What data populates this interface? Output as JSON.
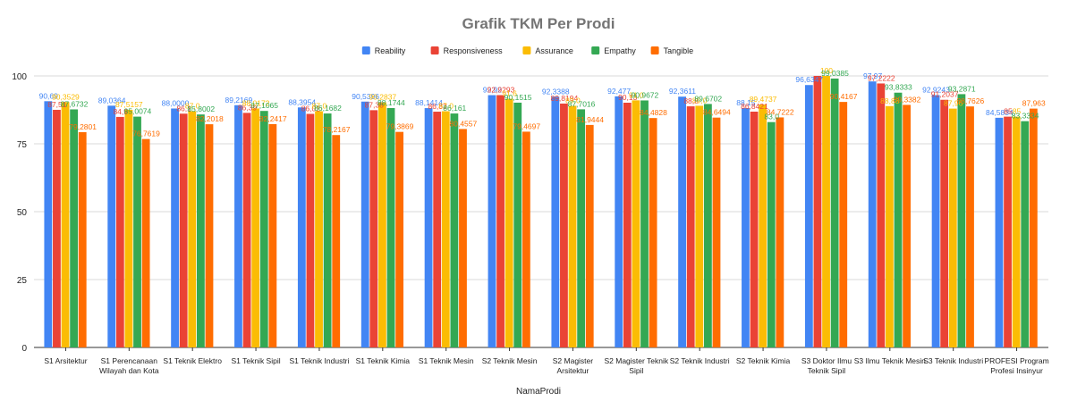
{
  "chart_data": {
    "type": "bar",
    "title": "Grafik TKM Per Prodi",
    "xlabel": "NamaProdi",
    "ylabel": "",
    "ylim": [
      0,
      100
    ],
    "yticks": [
      0,
      25,
      50,
      75,
      100
    ],
    "grid": true,
    "legend_position": "top",
    "categories": [
      [
        "S1 Arsitektur"
      ],
      [
        "S1 Perencanaan",
        "Wilayah dan Kota"
      ],
      [
        "S1 Teknik Elektro"
      ],
      [
        "S1 Teknik Sipil"
      ],
      [
        "S1 Teknik Industri"
      ],
      [
        "S1 Teknik Kimia"
      ],
      [
        "S1 Teknik Mesin"
      ],
      [
        "S2 Teknik Mesin"
      ],
      [
        "S2 Magister",
        "Arsitektur"
      ],
      [
        "S2 Magister Teknik",
        "Sipil"
      ],
      [
        "S2 Teknik Industri"
      ],
      [
        "S2 Teknik Kimia"
      ],
      [
        "S3 Doktor Ilmu",
        "Teknik Sipil"
      ],
      [
        "S3 Ilmu Teknik Mesin"
      ],
      [
        "S3 Teknik Industri"
      ],
      [
        "PROFESI Program",
        "Profesi Insinyur"
      ]
    ],
    "series": [
      {
        "name": "Reability",
        "color": "#4285f4",
        "values": [
          90.69,
          89.0364,
          88.0,
          89.2169,
          88.3954,
          90.5396,
          88.1414,
          92.92,
          92.3388,
          92.477,
          92.3611,
          88.15,
          96.6347,
          97.97,
          92.9243,
          84.5834
        ],
        "labels": [
          "90,69",
          "89,0364",
          "88,0000",
          "89,2169",
          "88,3954",
          "90,5396",
          "88,1414",
          "92,92",
          "92,3388",
          "92,477",
          "92,3611",
          "88,15",
          "96,6347",
          "97,97",
          "92,9243",
          "84,5834"
        ]
      },
      {
        "name": "Responsiveness",
        "color": "#ea4335",
        "values": [
          87.51,
          84.9,
          86.1,
          86.39,
          86.02,
          87.38,
          86.83,
          92.9293,
          89.8194,
          90.13,
          88.8,
          86.8421,
          100,
          97.2222,
          91.2037,
          85
        ],
        "labels": [
          "87,51",
          "84,9",
          "86,1",
          "86,39",
          "86,02",
          "87,38",
          "86,83",
          "92,9293",
          "89,8194",
          "90,13",
          "88,8",
          "86,8421",
          "",
          "97,2222",
          "91,2037",
          "85"
        ]
      },
      {
        "name": "Assurance",
        "color": "#fbbc04",
        "values": [
          90.3529,
          87.5157,
          87.0,
          88.0172,
          87.0,
          90.2837,
          87.0,
          91.6,
          89.0,
          91.0,
          89.0,
          89.4737,
          100,
          88.88,
          87.96,
          85
        ],
        "labels": [
          "90,3529",
          "87,5157",
          "87,0",
          "88,0172",
          "87,0",
          "90,2837",
          "87,0",
          "91,6",
          "89,0",
          "91,0",
          "89,0",
          "89,4737",
          "100",
          "88,88",
          "87,96",
          "85"
        ]
      },
      {
        "name": "Empathy",
        "color": "#34a853",
        "values": [
          87.6732,
          85.0074,
          85.8002,
          87.1065,
          86.1682,
          88.1744,
          86.161,
          90.1515,
          87.7016,
          90.9672,
          89.6702,
          83.0,
          99.0385,
          93.8333,
          93.2871,
          83.3334
        ],
        "labels": [
          "87,6732",
          "85,0074",
          "85,8002",
          "87,1065",
          "86,1682",
          "88,1744",
          "86,161",
          "90,1515",
          "87,7016",
          "90,9672",
          "89,6702",
          "83,0",
          "99,0385",
          "93,8333",
          "93,2871",
          "83,3334"
        ]
      },
      {
        "name": "Tangible",
        "color": "#ff6d01",
        "values": [
          79.2801,
          76.7619,
          82.2018,
          82.2417,
          78.2167,
          79.3869,
          80.4557,
          79.4697,
          81.9444,
          84.4828,
          84.6494,
          84.7222,
          90.4167,
          89.3382,
          88.7626,
          87.963
        ],
        "labels": [
          "79,2801",
          "76,7619",
          "82,2018",
          "82,2417",
          "78,2167",
          "79,3869",
          "80,4557",
          "79,4697",
          "81,9444",
          "84,4828",
          "84,6494",
          "84,7222",
          "90,4167",
          "89,3382",
          "88,7626",
          "87,963"
        ]
      }
    ]
  }
}
